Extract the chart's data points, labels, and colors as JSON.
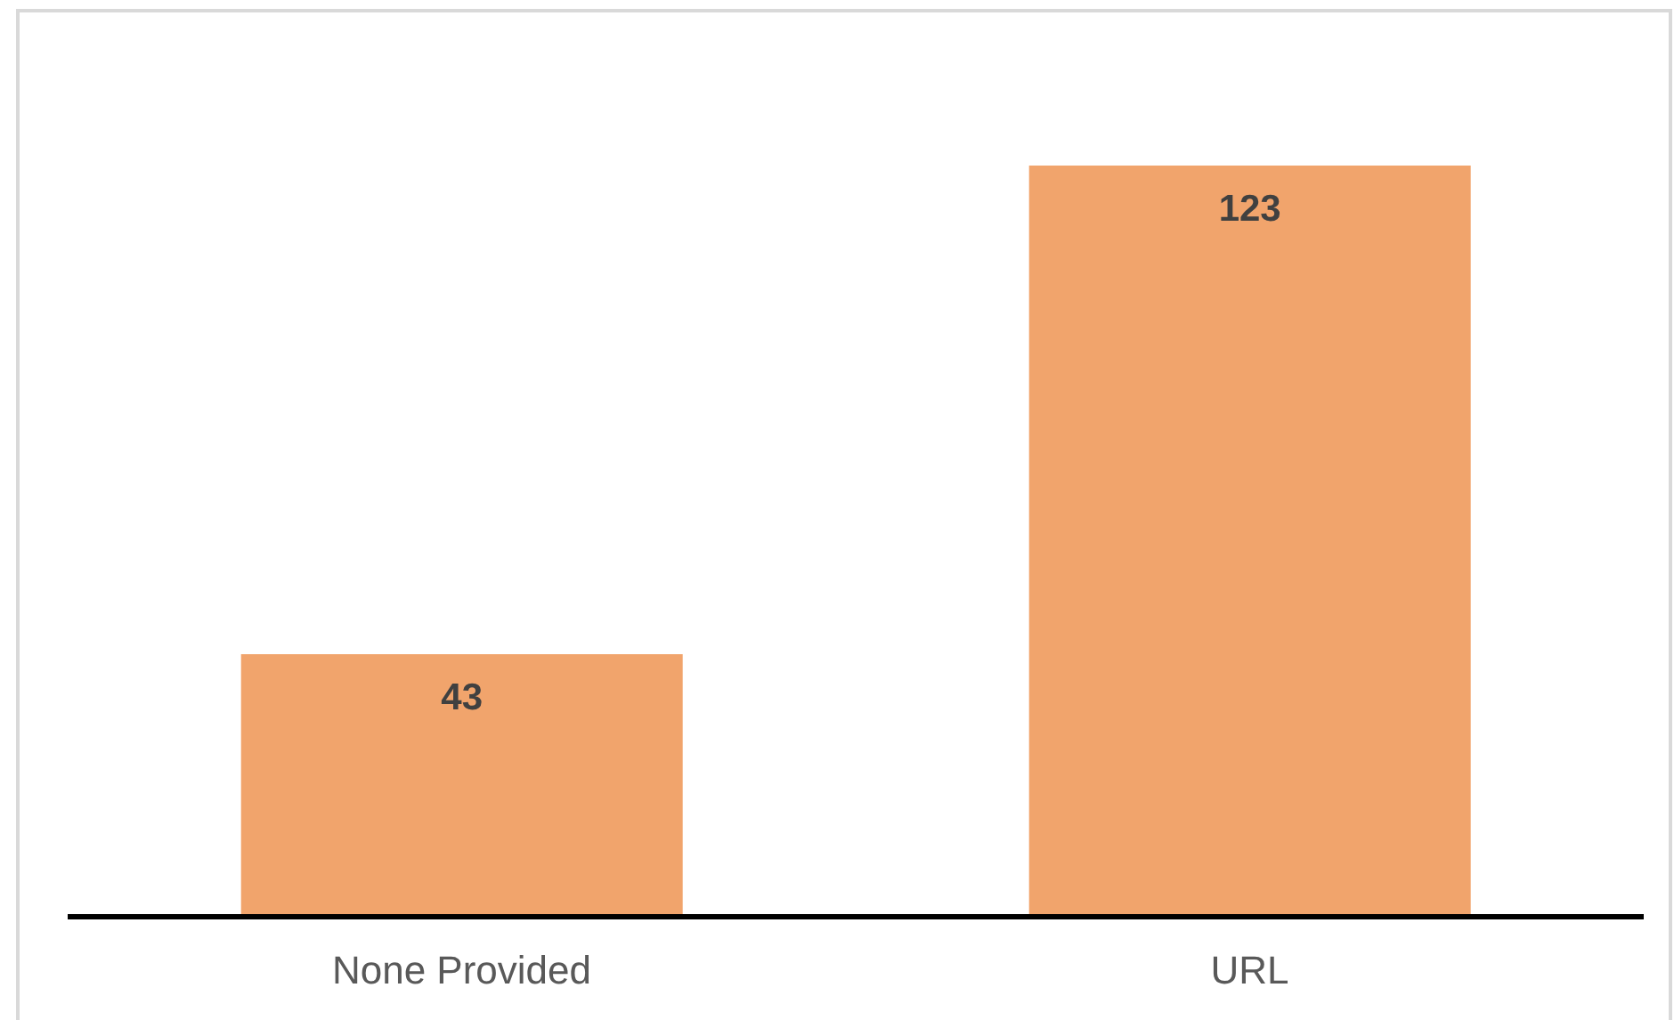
{
  "chart_data": {
    "type": "bar",
    "categories": [
      "None Provided",
      "URL"
    ],
    "values": [
      43,
      123
    ],
    "color": "#f1a46c",
    "data_labels": true
  }
}
